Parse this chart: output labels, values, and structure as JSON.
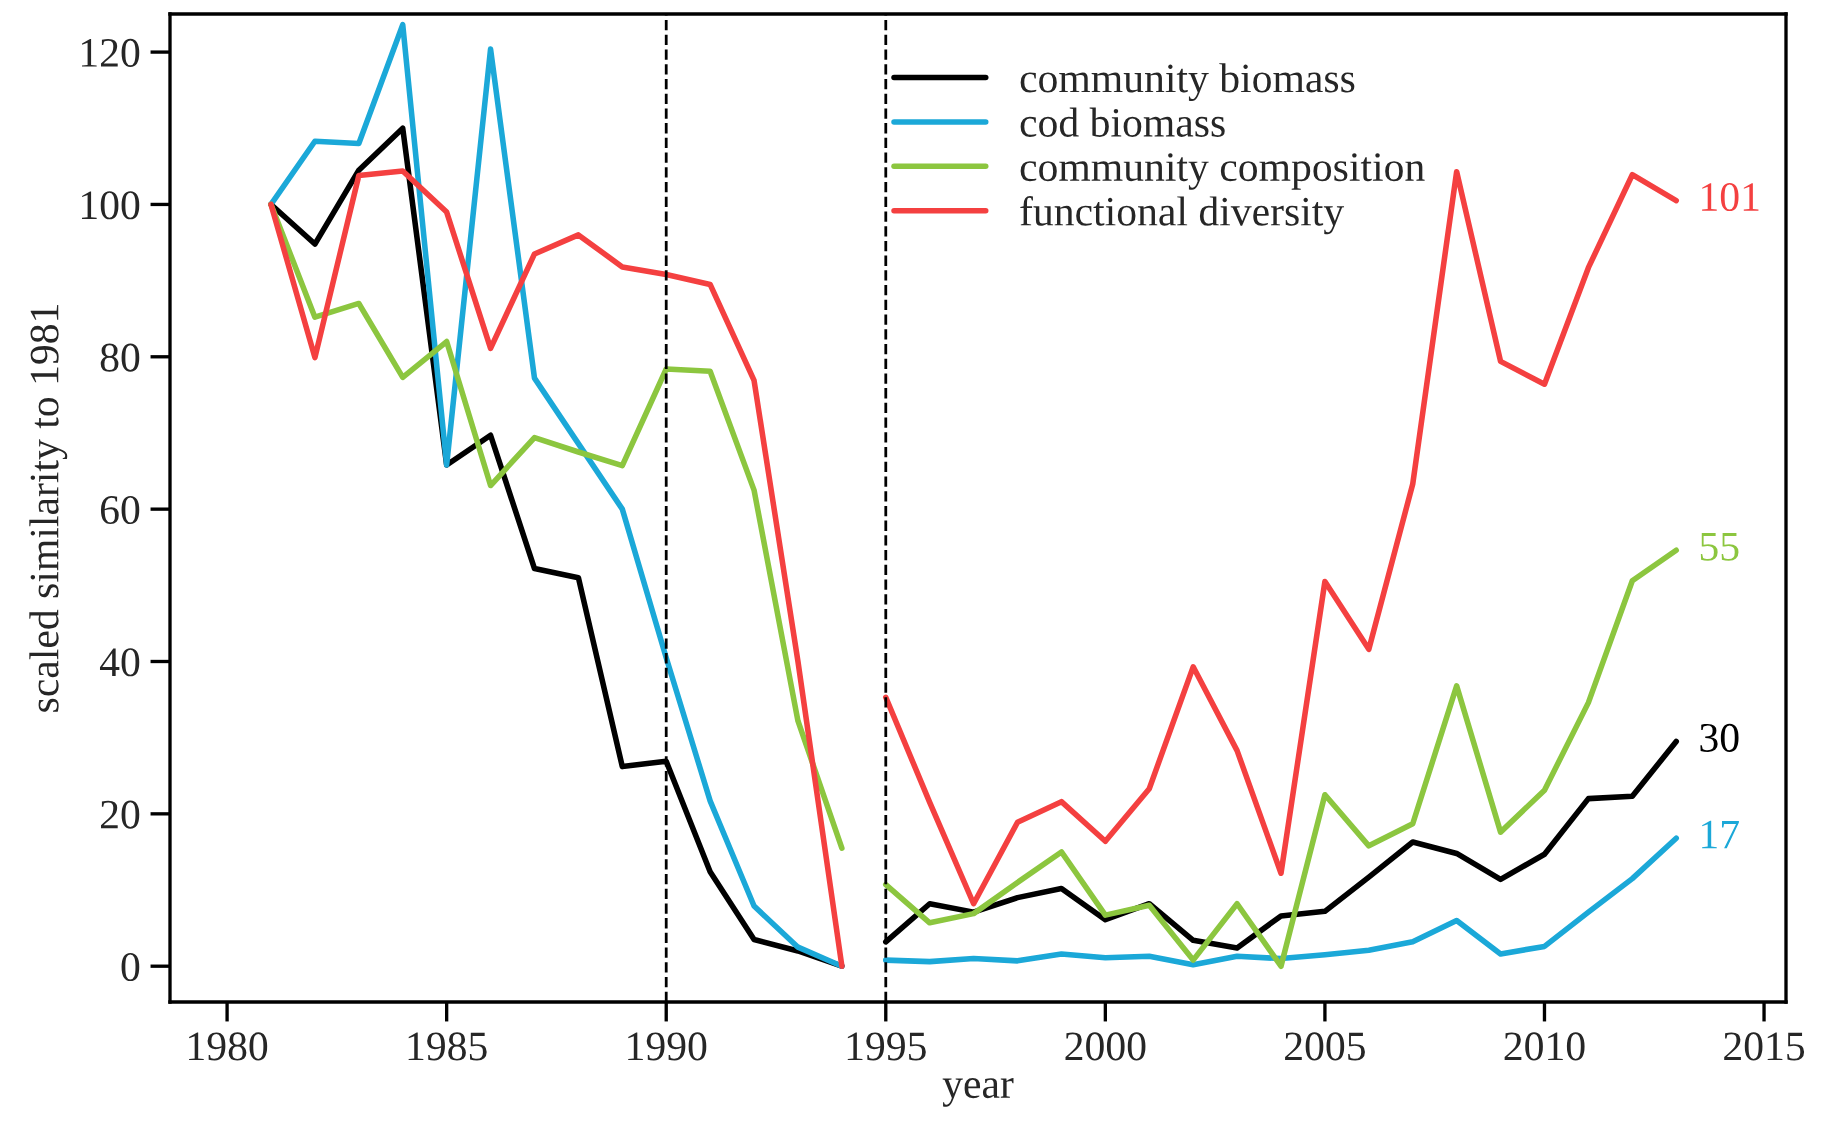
{
  "chart_data": {
    "type": "line",
    "xlabel": "year",
    "ylabel": "scaled similarity to 1981",
    "x": [
      1981,
      1982,
      1983,
      1984,
      1985,
      1986,
      1987,
      1988,
      1989,
      1990,
      1991,
      1992,
      1993,
      1994,
      1994.5,
      1995,
      1996,
      1997,
      1998,
      1999,
      2000,
      2001,
      2002,
      2003,
      2004,
      2005,
      2006,
      2007,
      2008,
      2009,
      2010,
      2011,
      2012,
      2013
    ],
    "series": [
      {
        "name": "community biomass",
        "color": "#000000",
        "values": [
          100,
          94.8,
          104.5,
          110,
          65.8,
          69.7,
          52.2,
          51,
          26.2,
          26.9,
          12.4,
          3.5,
          2,
          0,
          null,
          3.2,
          8.2,
          7.1,
          9.0,
          10.2,
          6.1,
          8.2,
          3.4,
          2.4,
          6.6,
          7.2,
          11.7,
          16.3,
          14.8,
          11.4,
          14.7,
          22.0,
          22.3,
          29.5
        ],
        "value_labels": [
          null,
          null,
          null,
          null,
          null,
          null,
          null,
          null,
          null,
          null,
          null,
          null,
          null,
          null,
          null,
          null,
          null,
          null,
          null,
          null,
          null,
          null,
          null,
          null,
          null,
          null,
          null,
          null,
          null,
          null,
          null,
          null,
          null,
          "30"
        ]
      },
      {
        "name": "cod biomass",
        "color": "#1ba8d8",
        "values": [
          100,
          108.3,
          108,
          123.6,
          65.8,
          120.4,
          77.2,
          68.6,
          60,
          40.5,
          21.7,
          7.9,
          2.5,
          0,
          null,
          0.8,
          0.6,
          1.0,
          0.7,
          1.6,
          1.1,
          1.3,
          0.2,
          1.3,
          1.0,
          1.5,
          2.1,
          3.2,
          6.0,
          1.6,
          2.6,
          7.1,
          11.5,
          16.8
        ],
        "value_labels": [
          null,
          null,
          null,
          null,
          null,
          null,
          null,
          null,
          null,
          null,
          null,
          null,
          null,
          null,
          null,
          null,
          null,
          null,
          null,
          null,
          null,
          null,
          null,
          null,
          null,
          null,
          null,
          null,
          null,
          null,
          null,
          null,
          null,
          "17"
        ]
      },
      {
        "name": "community composition",
        "color": "#8cc63f",
        "values": [
          100,
          85.2,
          87,
          77.3,
          82,
          63.1,
          69.4,
          67.5,
          65.7,
          78.4,
          78.1,
          62.5,
          32.2,
          15.5,
          null,
          10.7,
          5.7,
          6.9,
          11.0,
          15.0,
          6.7,
          8.0,
          0.8,
          8.2,
          0,
          22.5,
          15.8,
          18.7,
          36.8,
          17.6,
          23.1,
          34.6,
          50.6,
          54.6
        ],
        "value_labels": [
          null,
          null,
          null,
          null,
          null,
          null,
          null,
          null,
          null,
          null,
          null,
          null,
          null,
          null,
          null,
          null,
          null,
          null,
          null,
          null,
          null,
          null,
          null,
          null,
          null,
          null,
          null,
          null,
          null,
          null,
          null,
          null,
          null,
          "55"
        ]
      },
      {
        "name": "functional diversity",
        "color": "#f44040",
        "values": [
          100,
          79.9,
          103.8,
          104.4,
          99,
          81.1,
          93.5,
          96,
          91.8,
          90.8,
          89.5,
          76.9,
          40,
          0,
          null,
          35.3,
          21.5,
          8.2,
          18.9,
          21.6,
          16.4,
          23.3,
          39.3,
          28.3,
          12.2,
          50.5,
          41.6,
          63.3,
          104.3,
          79.4,
          76.4,
          91.7,
          103.9,
          100.5
        ],
        "value_labels": [
          null,
          null,
          null,
          null,
          null,
          null,
          null,
          null,
          null,
          null,
          null,
          null,
          null,
          null,
          null,
          null,
          null,
          null,
          null,
          null,
          null,
          null,
          null,
          null,
          null,
          null,
          null,
          null,
          null,
          null,
          null,
          null,
          null,
          "101"
        ]
      }
    ],
    "xlim": [
      1978.7,
      2015.5
    ],
    "xticks": [
      1980,
      1985,
      1990,
      1995,
      2000,
      2005,
      2010,
      2015
    ],
    "ylim": [
      -4.7,
      125
    ],
    "yticks": [
      0,
      20,
      40,
      60,
      80,
      100,
      120
    ],
    "ref_lines": [
      {
        "axis": "x",
        "value": 1990,
        "color": "#000000",
        "line_style": "dashed"
      },
      {
        "axis": "x",
        "value": 1995,
        "color": "#000000",
        "line_style": "dashed"
      }
    ],
    "grid": false,
    "legend": "top",
    "marker": "none",
    "line_style": "solid"
  }
}
